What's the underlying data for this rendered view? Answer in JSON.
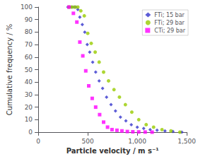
{
  "chart_data": {
    "type": "scatter",
    "xlabel": "Particle velocity / m s⁻¹",
    "ylabel": "Cumulative frequency / %",
    "xlim": [
      0,
      1500
    ],
    "ylim": [
      0,
      100
    ],
    "xticks": [
      0,
      500,
      1000,
      1500
    ],
    "yticks": [
      0,
      10,
      20,
      30,
      40,
      50,
      60,
      70,
      80,
      90,
      100
    ],
    "series": [
      {
        "name": "FTi; 15 bar",
        "color": "#3333CC",
        "marker": "diamond",
        "x": [
          300,
          320,
          340,
          360,
          380,
          400,
          420,
          445,
          470,
          495,
          520,
          550,
          580,
          615,
          650,
          690,
          735,
          780,
          830,
          885,
          940,
          1000,
          1065,
          1130,
          1200,
          1280,
          1360,
          1450
        ],
        "values": [
          100,
          100,
          100,
          100,
          100,
          98,
          92,
          86,
          80,
          70,
          64,
          56,
          48,
          41,
          35,
          28,
          22,
          17,
          12,
          9,
          6,
          4,
          3,
          2,
          1.5,
          1,
          0.5,
          0
        ]
      },
      {
        "name": "FTi; 29 bar",
        "color": "#99CC00",
        "marker": "circle",
        "x": [
          310,
          340,
          370,
          400,
          430,
          465,
          500,
          535,
          575,
          615,
          660,
          710,
          765,
          820,
          880,
          945,
          1015,
          1090,
          1165,
          1250,
          1340,
          1430
        ],
        "values": [
          100,
          100,
          100,
          100,
          97,
          93,
          79,
          71,
          64,
          56,
          48,
          41,
          34,
          28,
          22,
          16,
          10,
          6,
          4,
          2,
          1,
          0
        ]
      },
      {
        "name": "CTi; 29 bar",
        "color": "#FF00FF",
        "marker": "square",
        "x": [
          310,
          355,
          390,
          420,
          450,
          480,
          510,
          545,
          580,
          620,
          660,
          700,
          745,
          795,
          845,
          900,
          955,
          1015,
          1080,
          1150
        ],
        "values": [
          100,
          95,
          88,
          72,
          61,
          49,
          37,
          27,
          20,
          14,
          8,
          4,
          2,
          1.5,
          1,
          0.5,
          0.3,
          0.2,
          0.1,
          0
        ]
      }
    ],
    "legend": "upper right",
    "grid": false
  }
}
